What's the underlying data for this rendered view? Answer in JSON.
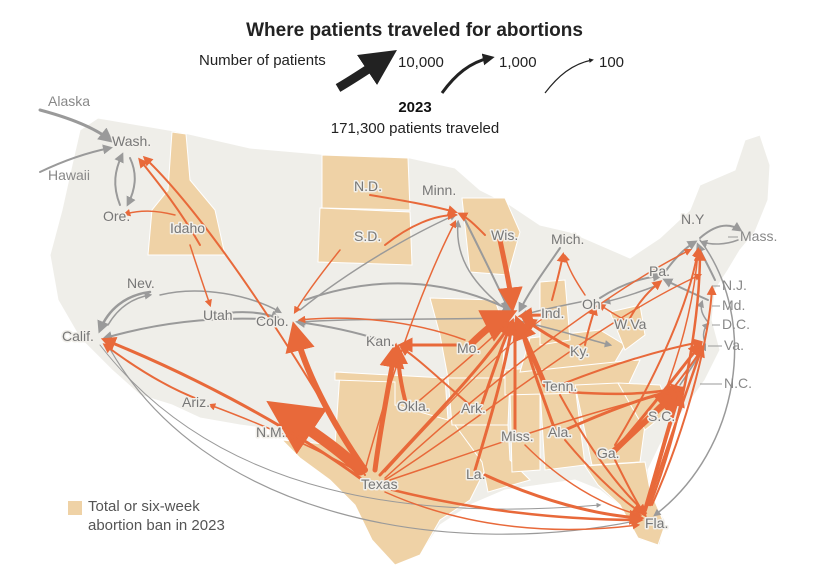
{
  "title": "Where patients traveled for abortions",
  "legend": {
    "label": "Number of patients",
    "values": [
      "10,000",
      "1,000",
      "100"
    ]
  },
  "year": "2023",
  "traveled": "171,300 patients traveled",
  "ban_legend": {
    "line1": "Total or six-week",
    "line2": "abortion ban in 2023",
    "color": "#efd2a6"
  },
  "colors": {
    "land": "#efeee9",
    "ban": "#efd2a6",
    "from_ban_state": "#e8693a",
    "from_other_state": "#9a9a9a"
  },
  "state_labels": {
    "alaska": "Alaska",
    "hawaii": "Hawaii",
    "wash": "Wash.",
    "ore": "Ore.",
    "idaho": "Idaho",
    "nev": "Nev.",
    "calif": "Calif.",
    "utah": "Utah",
    "ariz": "Ariz.",
    "colo": "Colo.",
    "nm": "N.M.",
    "nd": "N.D.",
    "sd": "S.D.",
    "kan": "Kan.",
    "okla": "Okla.",
    "texas": "Texas",
    "minn": "Minn.",
    "wis": "Wis.",
    "mich": "Mich.",
    "mo": "Mo.",
    "ark": "Ark.",
    "la": "La.",
    "miss": "Miss.",
    "ala": "Ala.",
    "tenn": "Tenn.",
    "ky": "Ky.",
    "ind": "Ind.",
    "ohio": "Oh",
    "ga": "Ga.",
    "fla": "Fla.",
    "sc": "S.C.",
    "nc": "N.C.",
    "va": "Va.",
    "wva": "W.Va",
    "pa": "Pa.",
    "ny": "N.Y",
    "nj": "N.J.",
    "md": "Md.",
    "dc": "D.C.",
    "mass": "Mass."
  }
}
